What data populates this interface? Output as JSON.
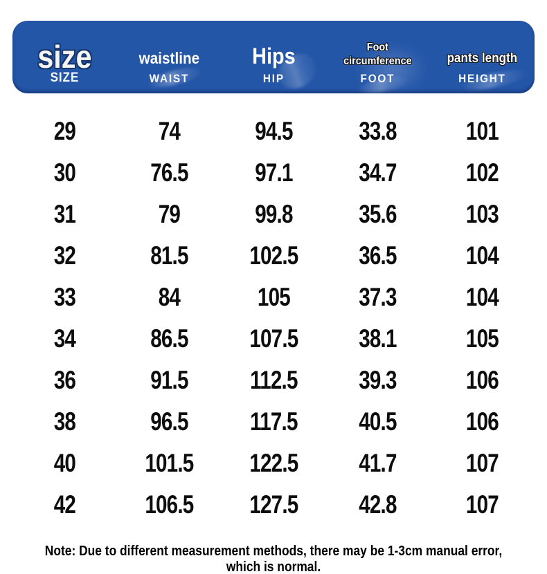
{
  "colors": {
    "page_background": "#ffffff",
    "header_background": "#2456a8",
    "header_text": "#ffffff",
    "body_text": "#0d0d0d"
  },
  "header": {
    "columns": [
      {
        "main": "size",
        "sub": "SIZE"
      },
      {
        "main": "waistline",
        "sub": "WAIST"
      },
      {
        "main": "Hips",
        "sub": "HIP"
      },
      {
        "main": "Foot circumference",
        "sub": "FOOT"
      },
      {
        "main": "pants length",
        "sub": "HEIGHT"
      }
    ]
  },
  "chart_data": {
    "type": "table",
    "title": "Pants size chart",
    "columns": [
      "size / SIZE",
      "waistline / WAIST",
      "Hips / HIP",
      "Foot circumference / FOOT",
      "pants length / HEIGHT"
    ],
    "rows": [
      [
        "29",
        "74",
        "94.5",
        "33.8",
        "101"
      ],
      [
        "30",
        "76.5",
        "97.1",
        "34.7",
        "102"
      ],
      [
        "31",
        "79",
        "99.8",
        "35.6",
        "103"
      ],
      [
        "32",
        "81.5",
        "102.5",
        "36.5",
        "104"
      ],
      [
        "33",
        "84",
        "105",
        "37.3",
        "104"
      ],
      [
        "34",
        "86.5",
        "107.5",
        "38.1",
        "105"
      ],
      [
        "36",
        "91.5",
        "112.5",
        "39.3",
        "106"
      ],
      [
        "38",
        "96.5",
        "117.5",
        "40.5",
        "106"
      ],
      [
        "40",
        "101.5",
        "122.5",
        "41.7",
        "107"
      ],
      [
        "42",
        "106.5",
        "127.5",
        "42.8",
        "107"
      ]
    ]
  },
  "note": "Note: Due to different measurement methods, there may be 1-3cm manual error, which is normal."
}
